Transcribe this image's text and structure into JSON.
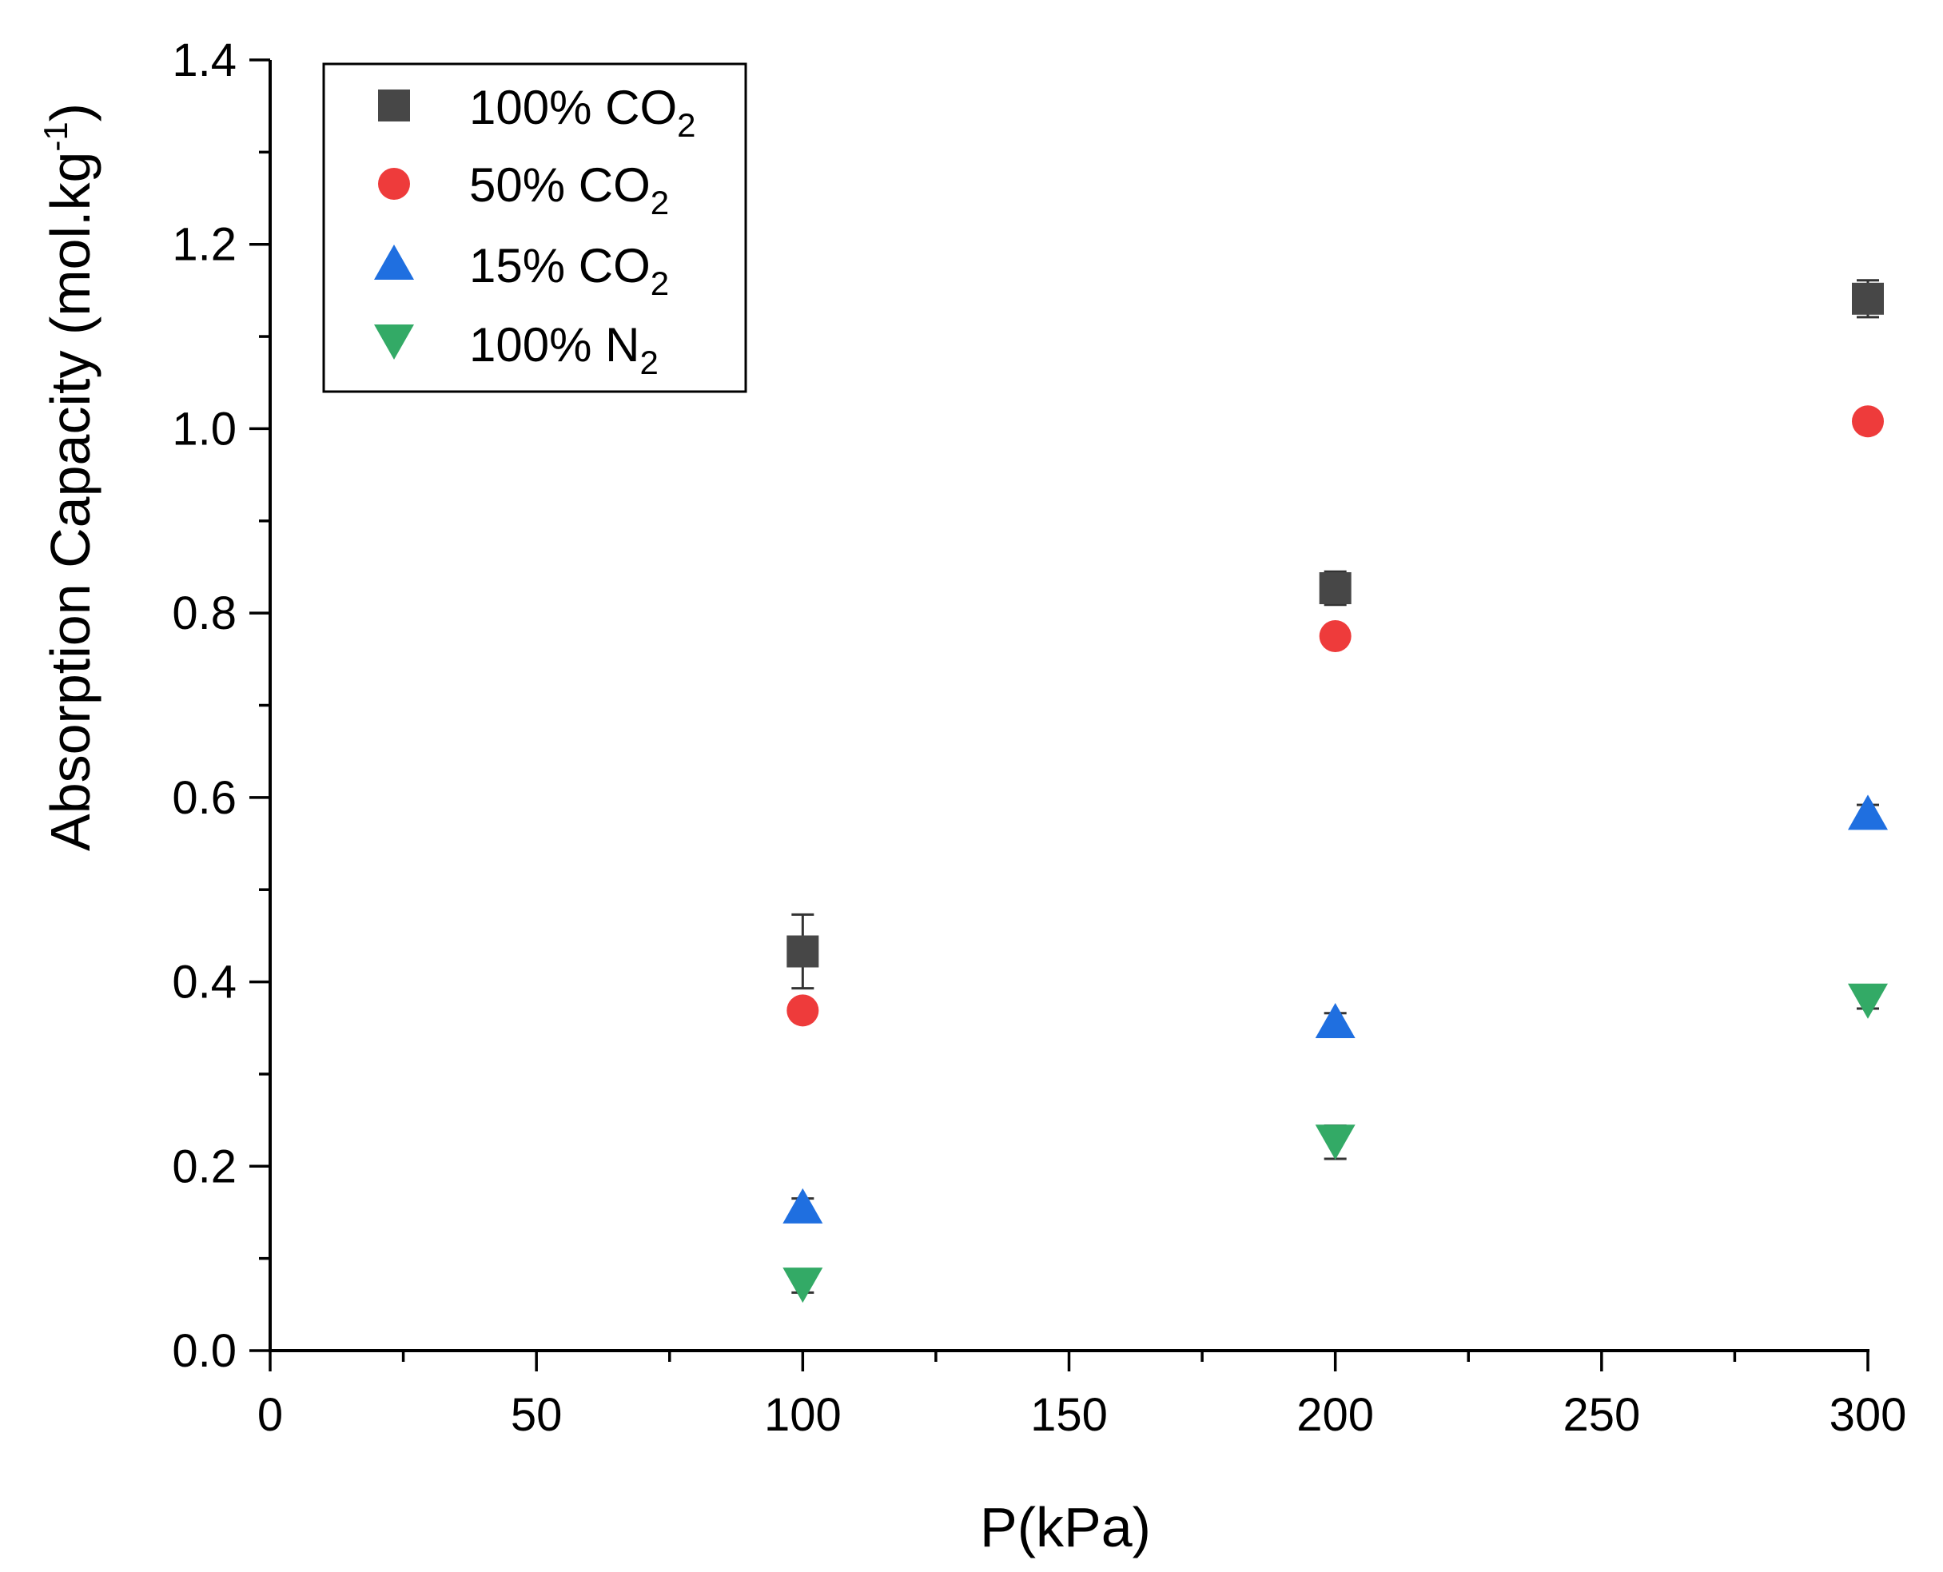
{
  "chart_data": {
    "type": "scatter",
    "title": "",
    "xlabel": "P(kPa)",
    "ylabel": {
      "main": "Absorption Capacity (mol.kg",
      "sup": "-1",
      "close": ")"
    },
    "xlim": [
      0,
      300
    ],
    "ylim": [
      0,
      1.4
    ],
    "x_ticks": [
      0,
      50,
      100,
      150,
      200,
      250,
      300
    ],
    "x_tick_labels": [
      "0",
      "50",
      "100",
      "150",
      "200",
      "250",
      "300"
    ],
    "y_ticks": [
      0.0,
      0.2,
      0.4,
      0.6,
      0.8,
      1.0,
      1.2,
      1.4
    ],
    "y_tick_labels": [
      "0.0",
      "0.2",
      "0.4",
      "0.6",
      "0.8",
      "1.0",
      "1.2",
      "1.4"
    ],
    "grid": false,
    "legend_position": "top-left",
    "series": [
      {
        "name": "100% CO2",
        "label_main": "100% CO",
        "label_sub": "2",
        "marker": "square",
        "color": "#474747",
        "x": [
          100,
          200,
          300
        ],
        "y": [
          0.433,
          0.827,
          1.141
        ],
        "yerr": [
          0.04,
          0.018,
          0.02
        ]
      },
      {
        "name": "50% CO2",
        "label_main": "50% CO",
        "label_sub": "2",
        "marker": "circle",
        "color": "#ee3b3b",
        "x": [
          100,
          200,
          300
        ],
        "y": [
          0.369,
          0.775,
          1.008
        ],
        "yerr": [
          0.008,
          0.008,
          0.008
        ]
      },
      {
        "name": "15% CO2",
        "label_main": "15% CO",
        "label_sub": "2",
        "marker": "triangle-up",
        "color": "#1f6fe0",
        "x": [
          100,
          200,
          300
        ],
        "y": [
          0.157,
          0.358,
          0.584
        ],
        "yerr": [
          0.008,
          0.008,
          0.008
        ]
      },
      {
        "name": "100% N2",
        "label_main": "100% N",
        "label_sub": "2",
        "marker": "triangle-down",
        "color": "#33aa66",
        "x": [
          100,
          200,
          300
        ],
        "y": [
          0.071,
          0.226,
          0.379
        ],
        "yerr": [
          0.008,
          0.018,
          0.008
        ]
      }
    ]
  }
}
